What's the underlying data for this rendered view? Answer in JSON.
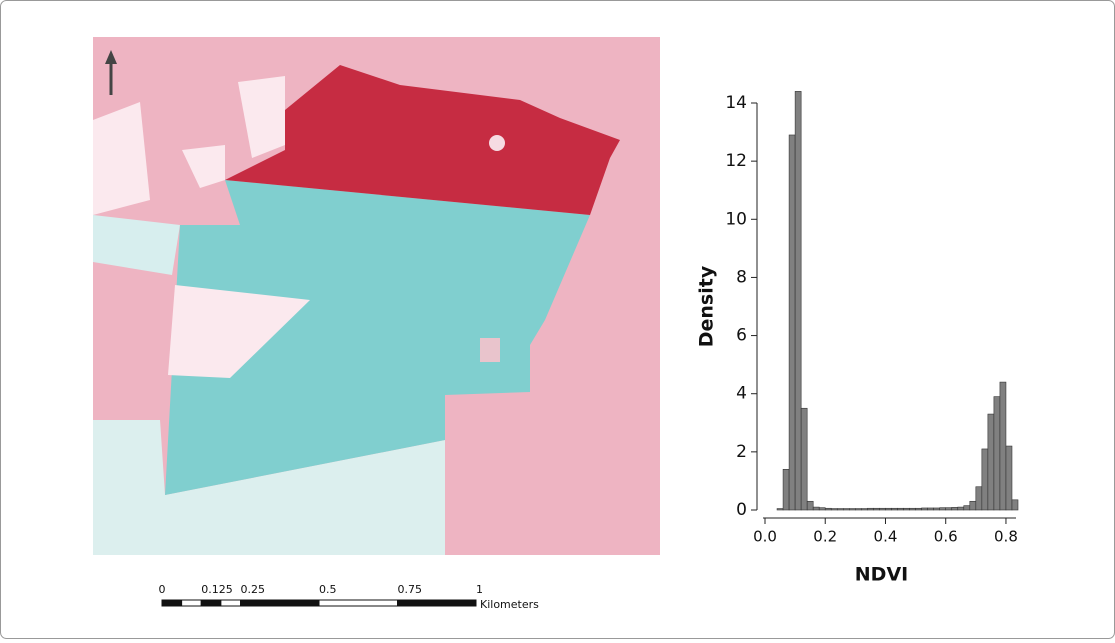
{
  "chart_data": {
    "type": "histogram",
    "xlabel": "NDVI",
    "ylabel": "Density",
    "bins": [
      0.04,
      0.06,
      0.08,
      0.1,
      0.12,
      0.14,
      0.16,
      0.18,
      0.2,
      0.22,
      0.24,
      0.26,
      0.28,
      0.3,
      0.32,
      0.34,
      0.36,
      0.38,
      0.4,
      0.42,
      0.44,
      0.46,
      0.48,
      0.5,
      0.52,
      0.54,
      0.56,
      0.58,
      0.6,
      0.62,
      0.64,
      0.66,
      0.68,
      0.7,
      0.72,
      0.74,
      0.76,
      0.78,
      0.8,
      0.82,
      0.84
    ],
    "values": [
      0.05,
      1.4,
      12.9,
      14.4,
      3.5,
      0.3,
      0.1,
      0.08,
      0.06,
      0.05,
      0.05,
      0.05,
      0.05,
      0.05,
      0.05,
      0.06,
      0.06,
      0.06,
      0.06,
      0.06,
      0.06,
      0.06,
      0.06,
      0.06,
      0.07,
      0.07,
      0.07,
      0.08,
      0.08,
      0.09,
      0.1,
      0.15,
      0.3,
      0.8,
      2.1,
      3.3,
      3.9,
      4.4,
      2.2,
      0.35
    ],
    "color": "#808080",
    "xlim": [
      0,
      0.84
    ],
    "xticks": [
      {
        "value": 0,
        "label": "0.0"
      },
      0.2,
      0.4,
      0.6,
      0.8
    ],
    "ylim": [
      0,
      14
    ],
    "yticks": [
      0,
      2,
      4,
      6,
      8,
      10,
      12,
      14
    ]
  },
  "scale_bar": {
    "ticks": [
      0,
      0.125,
      0.25,
      0.5,
      0.75,
      1
    ],
    "unit": "Kilometers"
  }
}
